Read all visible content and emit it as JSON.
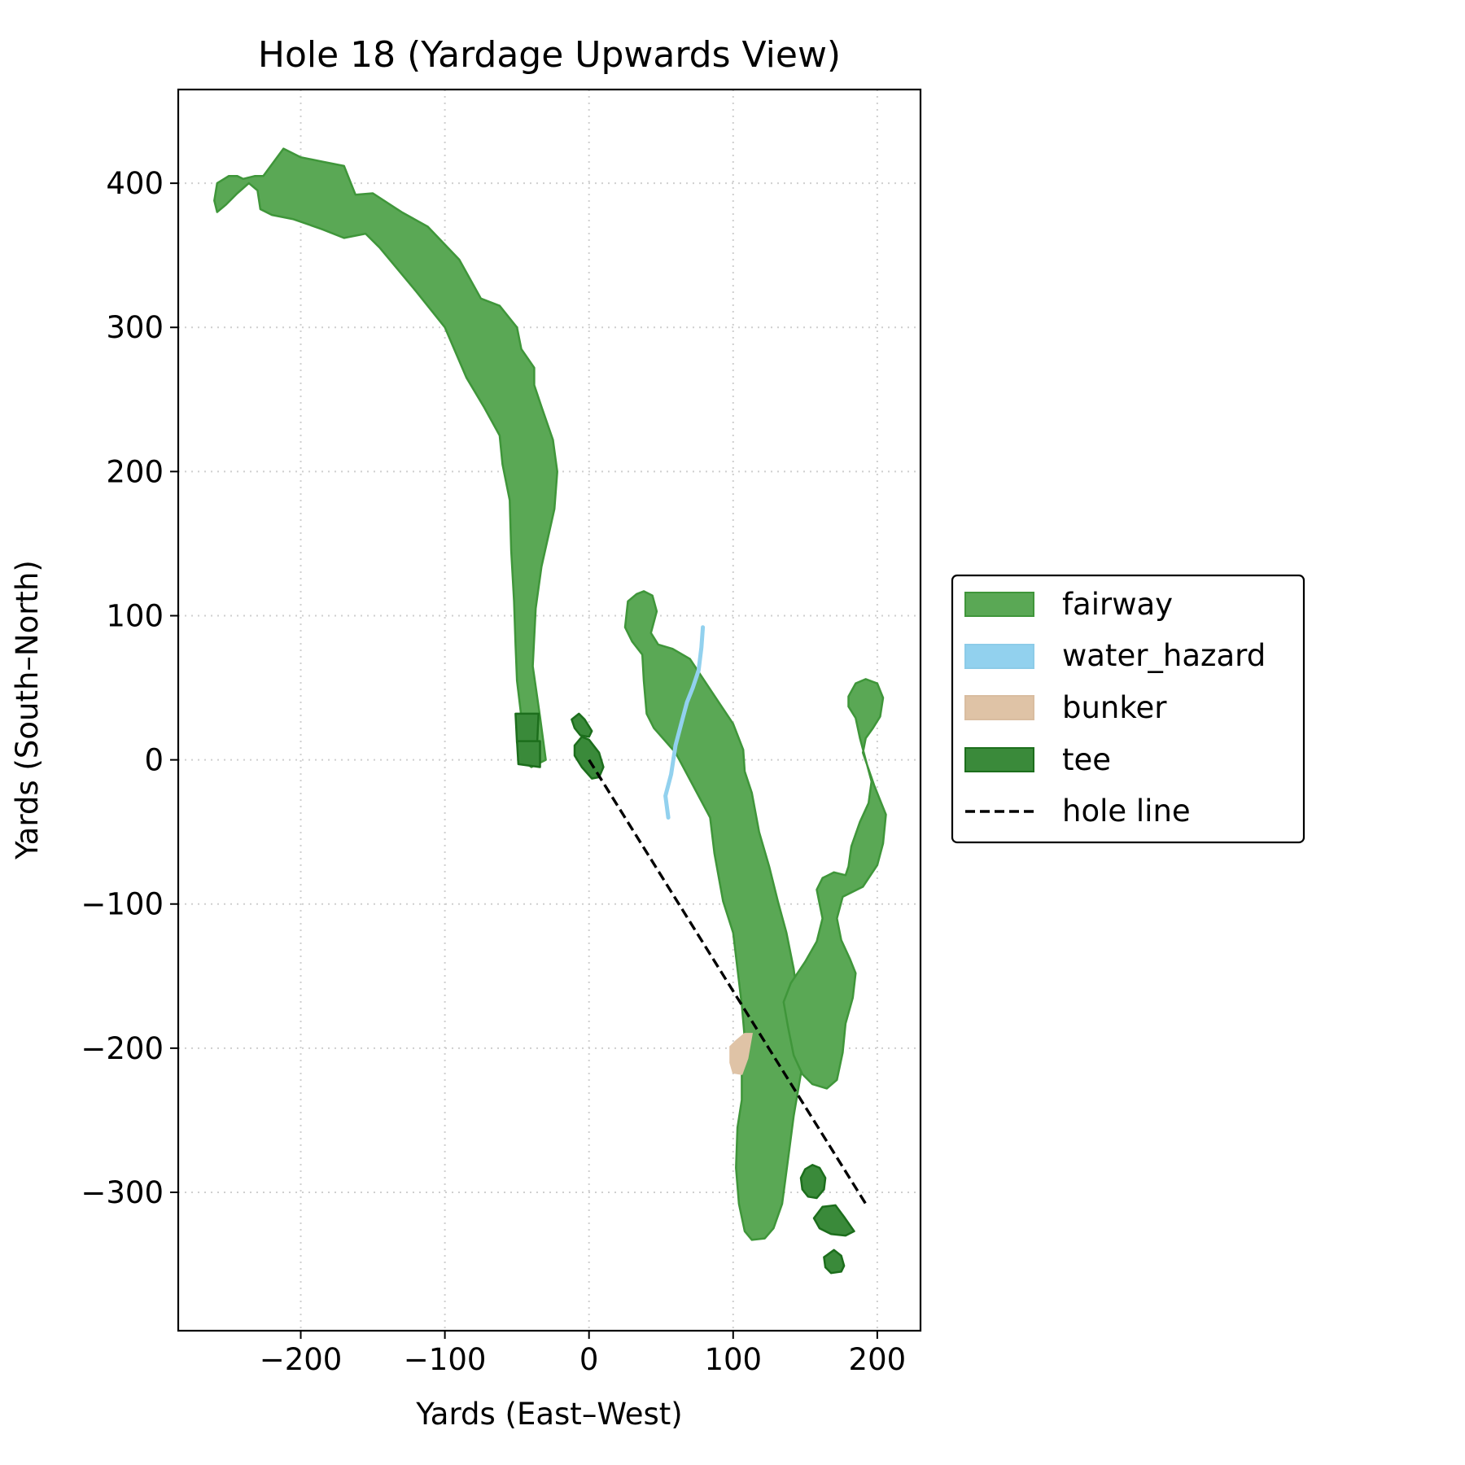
{
  "chart_data": {
    "type": "area",
    "title": "Hole 18 (Yardage Upwards View)",
    "xlabel": "Yards (East–West)",
    "ylabel": "Yards (South–North)",
    "xlim": [
      -285,
      230
    ],
    "ylim": [
      -396,
      465
    ],
    "xticks": [
      -200,
      -100,
      0,
      100,
      200
    ],
    "yticks": [
      -300,
      -200,
      -100,
      0,
      100,
      200,
      300,
      400
    ],
    "xtick_labels": [
      "−200",
      "−100",
      "0",
      "100",
      "200"
    ],
    "ytick_labels": [
      "−300",
      "−200",
      "−100",
      "0",
      "100",
      "200",
      "300",
      "400"
    ],
    "grid": true,
    "legend_position": "right",
    "legend": [
      {
        "key": "fairway",
        "label": "fairway"
      },
      {
        "key": "water_hazard",
        "label": "water_hazard"
      },
      {
        "key": "bunker",
        "label": "bunker"
      },
      {
        "key": "tee",
        "label": "tee"
      },
      {
        "key": "hole_line",
        "label": "hole line"
      }
    ],
    "colors": {
      "fairway_fill": "#5aa855",
      "fairway_edge": "#3f963a",
      "water": "#92d1ee",
      "bunker": "#dfc3a6",
      "tee_fill": "#3a8a3a",
      "tee_edge": "#1c6e1c",
      "hole_line": "#000000"
    },
    "series": [
      {
        "name": "fairway",
        "kind": "polygon",
        "points": [
          [
            -258,
            400
          ],
          [
            -250,
            405
          ],
          [
            -244,
            405
          ],
          [
            -240,
            403
          ],
          [
            -232,
            405
          ],
          [
            -226,
            405
          ],
          [
            -212,
            424
          ],
          [
            -200,
            418
          ],
          [
            -185,
            415
          ],
          [
            -170,
            412
          ],
          [
            -162,
            392
          ],
          [
            -150,
            393
          ],
          [
            -130,
            380
          ],
          [
            -112,
            370
          ],
          [
            -90,
            347
          ],
          [
            -75,
            320
          ],
          [
            -62,
            315
          ],
          [
            -50,
            300
          ],
          [
            -47,
            285
          ],
          [
            -38,
            272
          ],
          [
            -38,
            260
          ],
          [
            -33,
            245
          ],
          [
            -25,
            222
          ],
          [
            -22,
            200
          ],
          [
            -24,
            174
          ],
          [
            -33,
            134
          ],
          [
            -37,
            105
          ],
          [
            -39,
            65
          ],
          [
            -34,
            30
          ],
          [
            -30,
            0
          ],
          [
            -40,
            -5
          ],
          [
            -47,
            0
          ],
          [
            -47,
            30
          ],
          [
            -50,
            55
          ],
          [
            -51,
            80
          ],
          [
            -52,
            110
          ],
          [
            -54,
            145
          ],
          [
            -55,
            180
          ],
          [
            -60,
            205
          ],
          [
            -62,
            225
          ],
          [
            -73,
            245
          ],
          [
            -85,
            265
          ],
          [
            -100,
            300
          ],
          [
            -120,
            325
          ],
          [
            -145,
            355
          ],
          [
            -155,
            365
          ],
          [
            -170,
            362
          ],
          [
            -185,
            368
          ],
          [
            -205,
            375
          ],
          [
            -220,
            378
          ],
          [
            -228,
            382
          ],
          [
            -230,
            395
          ],
          [
            -236,
            400
          ],
          [
            -244,
            393
          ],
          [
            -252,
            385
          ],
          [
            -258,
            380
          ],
          [
            -260,
            388
          ]
        ]
      },
      {
        "name": "fairway",
        "kind": "polygon",
        "points": [
          [
            27,
            110
          ],
          [
            33,
            115
          ],
          [
            38,
            117
          ],
          [
            44,
            114
          ],
          [
            47,
            103
          ],
          [
            43,
            88
          ],
          [
            48,
            80
          ],
          [
            58,
            77
          ],
          [
            70,
            70
          ],
          [
            80,
            55
          ],
          [
            90,
            40
          ],
          [
            100,
            25
          ],
          [
            107,
            7
          ],
          [
            108,
            -8
          ],
          [
            113,
            -23
          ],
          [
            118,
            -50
          ],
          [
            125,
            -74
          ],
          [
            131,
            -98
          ],
          [
            137,
            -120
          ],
          [
            142,
            -145
          ],
          [
            145,
            -168
          ],
          [
            148,
            -190
          ],
          [
            148,
            -212
          ],
          [
            142,
            -247
          ],
          [
            139,
            -270
          ],
          [
            134,
            -308
          ],
          [
            128,
            -325
          ],
          [
            122,
            -332
          ],
          [
            113,
            -333
          ],
          [
            108,
            -327
          ],
          [
            104,
            -308
          ],
          [
            102,
            -283
          ],
          [
            103,
            -255
          ],
          [
            106,
            -236
          ],
          [
            106,
            -210
          ],
          [
            108,
            -193
          ],
          [
            106,
            -170
          ],
          [
            103,
            -145
          ],
          [
            100,
            -120
          ],
          [
            93,
            -98
          ],
          [
            87,
            -65
          ],
          [
            84,
            -40
          ],
          [
            76,
            -25
          ],
          [
            60,
            5
          ],
          [
            45,
            22
          ],
          [
            40,
            32
          ],
          [
            38,
            55
          ],
          [
            37,
            73
          ],
          [
            30,
            82
          ],
          [
            25,
            92
          ]
        ]
      },
      {
        "name": "fairway",
        "kind": "polygon",
        "points": [
          [
            180,
            44
          ],
          [
            185,
            53
          ],
          [
            192,
            56
          ],
          [
            200,
            53
          ],
          [
            204,
            43
          ],
          [
            202,
            30
          ],
          [
            197,
            22
          ],
          [
            192,
            15
          ],
          [
            190,
            5
          ],
          [
            198,
            -18
          ],
          [
            206,
            -38
          ],
          [
            204,
            -58
          ],
          [
            200,
            -73
          ],
          [
            190,
            -88
          ],
          [
            176,
            -95
          ],
          [
            172,
            -110
          ],
          [
            175,
            -125
          ],
          [
            181,
            -138
          ],
          [
            185,
            -148
          ],
          [
            183,
            -165
          ],
          [
            178,
            -183
          ],
          [
            176,
            -203
          ],
          [
            172,
            -222
          ],
          [
            165,
            -228
          ],
          [
            155,
            -225
          ],
          [
            148,
            -218
          ],
          [
            142,
            -205
          ],
          [
            138,
            -185
          ],
          [
            135,
            -168
          ],
          [
            140,
            -155
          ],
          [
            150,
            -140
          ],
          [
            158,
            -126
          ],
          [
            162,
            -110
          ],
          [
            160,
            -100
          ],
          [
            158,
            -90
          ],
          [
            162,
            -82
          ],
          [
            170,
            -78
          ],
          [
            178,
            -80
          ],
          [
            180,
            -74
          ],
          [
            182,
            -60
          ],
          [
            188,
            -43
          ],
          [
            194,
            -30
          ],
          [
            196,
            -15
          ],
          [
            192,
            0
          ],
          [
            188,
            15
          ],
          [
            185,
            29
          ],
          [
            180,
            37
          ]
        ]
      },
      {
        "name": "water_hazard",
        "kind": "line",
        "points": [
          [
            55,
            -40
          ],
          [
            53,
            -25
          ],
          [
            57,
            -10
          ],
          [
            60,
            10
          ],
          [
            64,
            25
          ],
          [
            68,
            40
          ],
          [
            72,
            50
          ],
          [
            76,
            62
          ],
          [
            78,
            78
          ],
          [
            79,
            92
          ]
        ]
      },
      {
        "name": "bunker",
        "kind": "polygon",
        "points": [
          [
            102,
            -195
          ],
          [
            108,
            -190
          ],
          [
            113,
            -190
          ],
          [
            110,
            -207
          ],
          [
            106,
            -218
          ],
          [
            100,
            -217
          ],
          [
            98,
            -210
          ],
          [
            98,
            -199
          ]
        ]
      },
      {
        "name": "tee",
        "kind": "polygon",
        "points": [
          [
            -51,
            32
          ],
          [
            -35,
            32
          ],
          [
            -36,
            10
          ],
          [
            -50,
            12
          ]
        ]
      },
      {
        "name": "tee",
        "kind": "polygon",
        "points": [
          [
            -50,
            13
          ],
          [
            -34,
            13
          ],
          [
            -34,
            -5
          ],
          [
            -49,
            -3
          ]
        ]
      },
      {
        "name": "tee",
        "kind": "polygon",
        "points": [
          [
            -12,
            28
          ],
          [
            -7,
            32
          ],
          [
            -3,
            28
          ],
          [
            2,
            20
          ],
          [
            0,
            16
          ],
          [
            -6,
            17
          ],
          [
            -10,
            22
          ]
        ]
      },
      {
        "name": "tee",
        "kind": "polygon",
        "points": [
          [
            -10,
            10
          ],
          [
            -5,
            16
          ],
          [
            0,
            14
          ],
          [
            7,
            5
          ],
          [
            10,
            -5
          ],
          [
            7,
            -12
          ],
          [
            2,
            -13
          ],
          [
            -5,
            -5
          ],
          [
            -10,
            3
          ]
        ]
      },
      {
        "name": "tee",
        "kind": "polygon",
        "points": [
          [
            147,
            -290
          ],
          [
            150,
            -284
          ],
          [
            155,
            -281
          ],
          [
            160,
            -283
          ],
          [
            164,
            -290
          ],
          [
            163,
            -298
          ],
          [
            158,
            -304
          ],
          [
            152,
            -303
          ],
          [
            148,
            -298
          ]
        ]
      },
      {
        "name": "tee",
        "kind": "polygon",
        "points": [
          [
            156,
            -318
          ],
          [
            162,
            -310
          ],
          [
            171,
            -309
          ],
          [
            177,
            -317
          ],
          [
            184,
            -327
          ],
          [
            178,
            -330
          ],
          [
            168,
            -329
          ],
          [
            160,
            -325
          ]
        ]
      },
      {
        "name": "tee",
        "kind": "polygon",
        "points": [
          [
            163,
            -345
          ],
          [
            170,
            -340
          ],
          [
            175,
            -344
          ],
          [
            177,
            -351
          ],
          [
            175,
            -355
          ],
          [
            168,
            -356
          ],
          [
            164,
            -352
          ]
        ]
      },
      {
        "name": "hole_line",
        "kind": "dashed-line",
        "points": [
          [
            0,
            0
          ],
          [
            192,
            -308
          ]
        ]
      }
    ]
  }
}
